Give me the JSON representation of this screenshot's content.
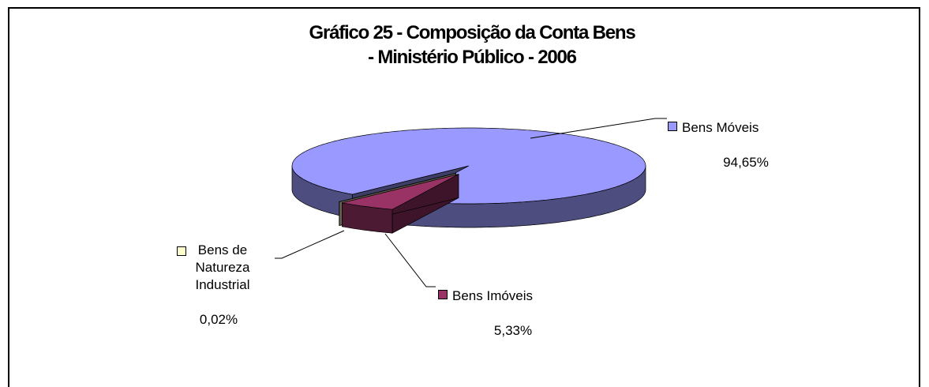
{
  "chart_data": {
    "type": "pie",
    "title": "Gráfico 25 - Composição da Conta Bens\n- Ministério Público - 2006",
    "categories": [
      "Bens Móveis",
      "Bens Imóveis",
      "Bens de\nNatureza\nIndustrial"
    ],
    "values": [
      94.65,
      5.33,
      0.02
    ],
    "value_labels": [
      "94,65%",
      "5,33%",
      "0,02%"
    ],
    "colors": [
      "#9999ff",
      "#993366",
      "#ffffcc"
    ]
  }
}
